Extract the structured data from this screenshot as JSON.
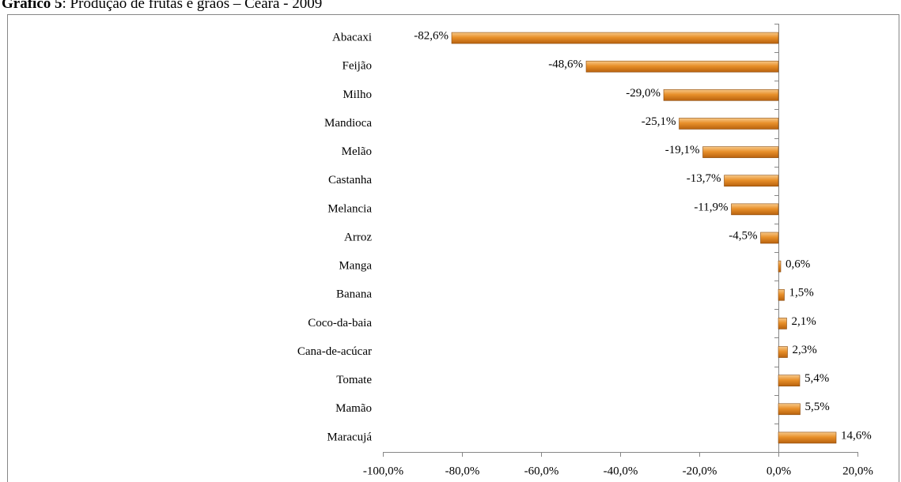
{
  "chart_data": {
    "type": "bar",
    "orientation": "horizontal",
    "title_prefix": "Gráfico 5",
    "title": ": Produção de frutas e grãos – Ceará - 2009",
    "categories": [
      "Abacaxi",
      "Feijão",
      "Milho",
      "Mandioca",
      "Melão",
      "Castanha",
      "Melancia",
      "Arroz",
      "Manga",
      "Banana",
      "Coco-da-baia",
      "Cana-de-acúcar",
      "Tomate",
      "Mamão",
      "Maracujá"
    ],
    "values": [
      -82.6,
      -48.6,
      -29.0,
      -25.1,
      -19.1,
      -13.7,
      -11.9,
      -4.5,
      0.6,
      1.5,
      2.1,
      2.3,
      5.4,
      5.5,
      14.6
    ],
    "value_labels": [
      "-82,6%",
      "-48,6%",
      "-29,0%",
      "-25,1%",
      "-19,1%",
      "-13,7%",
      "-11,9%",
      "-4,5%",
      "0,6%",
      "1,5%",
      "2,1%",
      "2,3%",
      "5,4%",
      "5,5%",
      "14,6%"
    ],
    "color": "#e8902a",
    "xlim": [
      -100,
      20
    ],
    "xticks": [
      {
        "value": -100,
        "label": "-100,0%"
      },
      {
        "value": -80,
        "label": "-80,0%"
      },
      {
        "value": -60,
        "label": "-60,0%"
      },
      {
        "value": -40,
        "label": "-40,0%"
      },
      {
        "value": -20,
        "label": "-20,0%"
      },
      {
        "value": 0,
        "label": "0,0%"
      },
      {
        "value": 20,
        "label": "20,0%"
      }
    ]
  }
}
